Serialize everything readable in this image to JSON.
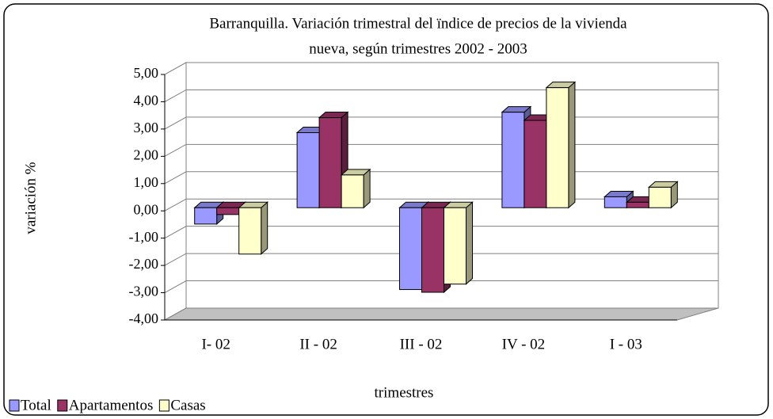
{
  "chart_data": {
    "type": "bar3d",
    "title": [
      "Barranquilla. Variación trimestral del ïndice de precios de la vivienda",
      "nueva, según trimestres 2002 - 2003"
    ],
    "x_label": "trimestres",
    "y_label": "variación %",
    "categories": [
      "I- 02",
      "II - 02",
      "III - 02",
      "IV - 02",
      "I - 03"
    ],
    "series": [
      {
        "name": "Total",
        "color": "#9999ff",
        "values": [
          -0.6,
          2.75,
          -3.0,
          3.5,
          0.4
        ]
      },
      {
        "name": "Apartamentos",
        "color": "#993366",
        "values": [
          -0.25,
          3.3,
          -3.1,
          3.2,
          0.2
        ]
      },
      {
        "name": "Casas",
        "color": "#ffffcc",
        "values": [
          -1.7,
          1.2,
          -2.8,
          4.4,
          0.75
        ]
      }
    ],
    "ylim": [
      -4,
      5
    ],
    "yticks": [
      {
        "value": -4,
        "label": "-4,00"
      },
      {
        "value": -3,
        "label": "-3,00"
      },
      {
        "value": -2,
        "label": "-2,00"
      },
      {
        "value": -1,
        "label": "-1,00"
      },
      {
        "value": 0,
        "label": "0,00"
      },
      {
        "value": 1,
        "label": "1,00"
      },
      {
        "value": 2,
        "label": "2,00"
      },
      {
        "value": 3,
        "label": "3,00"
      },
      {
        "value": 4,
        "label": "4,00"
      },
      {
        "value": 5,
        "label": "5,00"
      }
    ],
    "grid": true,
    "legend": "bottom-left"
  }
}
